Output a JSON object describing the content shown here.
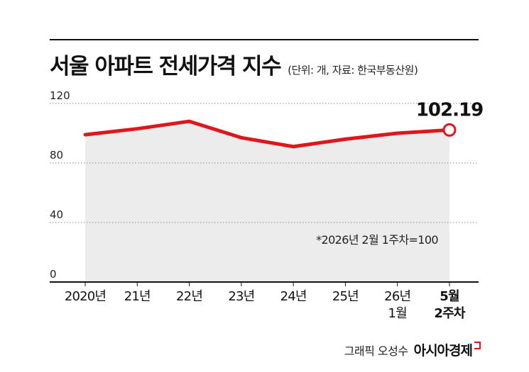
{
  "header": {
    "title": "서울 아파트 전세가격 지수",
    "unit_note": "(단위: 개, 자료: 한국부동산원)"
  },
  "footer": {
    "credit": "그래픽 오성수",
    "brand": "아시아경제"
  },
  "colors": {
    "line": "#e0161d",
    "area": "#ececec",
    "grid": "#8a8a8a",
    "text": "#111111"
  },
  "chart_data": {
    "type": "line",
    "title": "서울 아파트 전세가격 지수",
    "categories": [
      "2020년",
      "21년",
      "22년",
      "23년",
      "24년",
      "25년",
      "26년\n1월",
      "5월\n2주차"
    ],
    "values": [
      99,
      103,
      108,
      97,
      91,
      96,
      100,
      102.19
    ],
    "highlight_label": "102.19",
    "y_ticks": [
      0,
      40,
      80,
      120
    ],
    "ylim": [
      0,
      120
    ],
    "note": "*2026년 2월 1주차=100",
    "grid": true,
    "area_fill": true
  }
}
